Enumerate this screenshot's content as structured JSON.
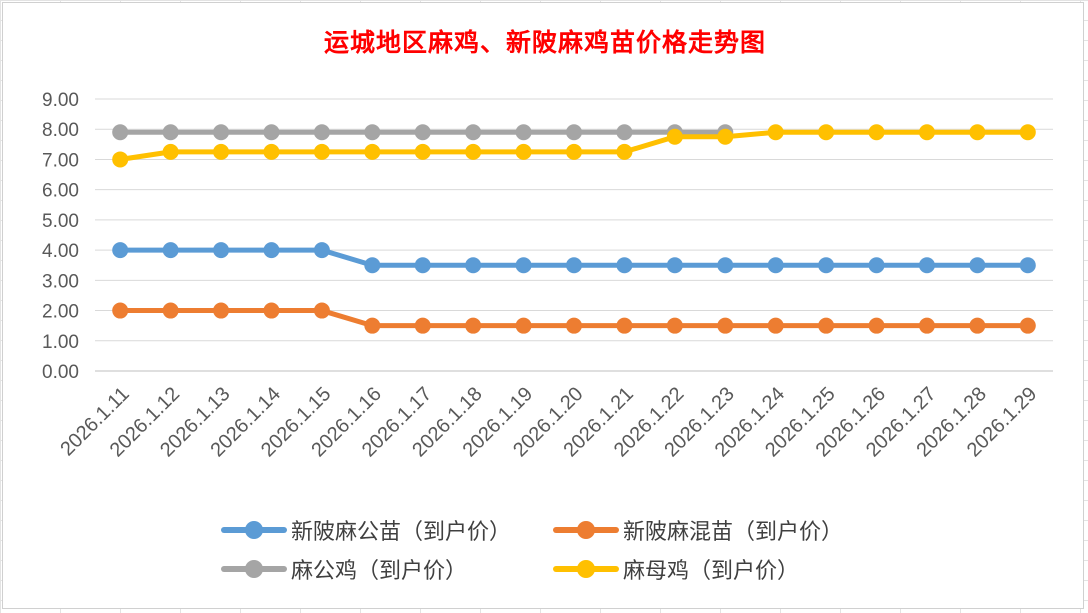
{
  "chart_data": {
    "type": "line",
    "title": "运城地区麻鸡、新陂麻鸡苗价格走势图",
    "xlabel": "",
    "ylabel": "",
    "categories": [
      "2026.1.11",
      "2026.1.12",
      "2026.1.13",
      "2026.1.14",
      "2026.1.15",
      "2026.1.16",
      "2026.1.17",
      "2026.1.18",
      "2026.1.19",
      "2026.1.20",
      "2026.1.21",
      "2026.1.22",
      "2026.1.23",
      "2026.1.24",
      "2026.1.25",
      "2026.1.26",
      "2026.1.27",
      "2026.1.28",
      "2026.1.29"
    ],
    "ylim": [
      0,
      9
    ],
    "yticks": [
      "0.00",
      "1.00",
      "2.00",
      "3.00",
      "4.00",
      "5.00",
      "6.00",
      "7.00",
      "8.00",
      "9.00"
    ],
    "grid": "horizontal",
    "legend_position": "bottom",
    "series": [
      {
        "name": "新陂麻公苗（到户价）",
        "color": "#5b9bd5",
        "values": [
          4.0,
          4.0,
          4.0,
          4.0,
          4.0,
          3.5,
          3.5,
          3.5,
          3.5,
          3.5,
          3.5,
          3.5,
          3.5,
          3.5,
          3.5,
          3.5,
          3.5,
          3.5,
          3.5
        ]
      },
      {
        "name": "新陂麻混苗（到户价）",
        "color": "#ed7d31",
        "values": [
          2.0,
          2.0,
          2.0,
          2.0,
          2.0,
          1.5,
          1.5,
          1.5,
          1.5,
          1.5,
          1.5,
          1.5,
          1.5,
          1.5,
          1.5,
          1.5,
          1.5,
          1.5,
          1.5
        ]
      },
      {
        "name": "麻公鸡（到户价）",
        "color": "#a5a5a5",
        "values": [
          7.9,
          7.9,
          7.9,
          7.9,
          7.9,
          7.9,
          7.9,
          7.9,
          7.9,
          7.9,
          7.9,
          7.9,
          7.9,
          null,
          null,
          null,
          null,
          null,
          null
        ]
      },
      {
        "name": "麻母鸡（到户价）",
        "color": "#ffc000",
        "values": [
          7.0,
          7.25,
          7.25,
          7.25,
          7.25,
          7.25,
          7.25,
          7.25,
          7.25,
          7.25,
          7.25,
          7.75,
          7.75,
          7.9,
          7.9,
          7.9,
          7.9,
          7.9,
          7.9
        ]
      }
    ]
  }
}
